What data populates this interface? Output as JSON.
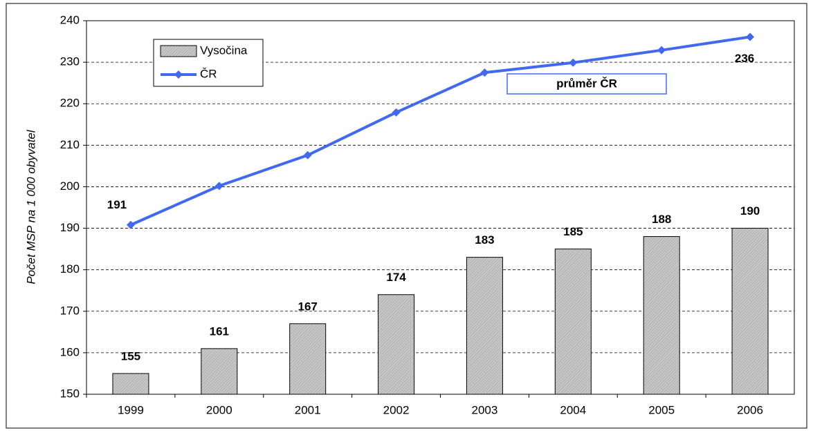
{
  "chart_data": {
    "type": "bar+line",
    "y_label": "Počet MSP na 1 000 obyvatel",
    "annotation": "průměr ČR",
    "categories": [
      "1999",
      "2000",
      "2001",
      "2002",
      "2003",
      "2004",
      "2005",
      "2006"
    ],
    "series": [
      {
        "name": "Vysočina",
        "type": "bar",
        "color": "#c0c0c0",
        "values": [
          155,
          161,
          167,
          174,
          183,
          185,
          188,
          190
        ]
      },
      {
        "name": "ČR",
        "type": "line",
        "color": "#4169f0",
        "values": [
          190.8,
          200.2,
          207.6,
          217.9,
          227.5,
          229.9,
          232.9,
          236.1
        ],
        "value_labels": [
          "191",
          null,
          null,
          null,
          null,
          null,
          null,
          "236"
        ]
      }
    ],
    "ylim": [
      150,
      240
    ],
    "yticks": [
      150,
      160,
      170,
      180,
      190,
      200,
      210,
      220,
      230,
      240
    ],
    "grid": true,
    "legend": "top-left"
  }
}
